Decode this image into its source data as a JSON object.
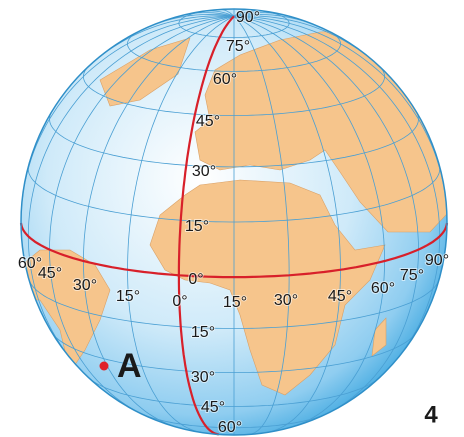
{
  "latitude_labels": [
    "90°",
    "75°",
    "60°",
    "45°",
    "30°",
    "15°",
    "0°",
    "15°",
    "30°",
    "45°",
    "60°"
  ],
  "longitude_labels": [
    "60°",
    "45°",
    "30°",
    "15°",
    "0°",
    "15°",
    "30°",
    "45°",
    "60°",
    "75°",
    "90°"
  ],
  "point": {
    "label": "A"
  },
  "figure_number": "4"
}
